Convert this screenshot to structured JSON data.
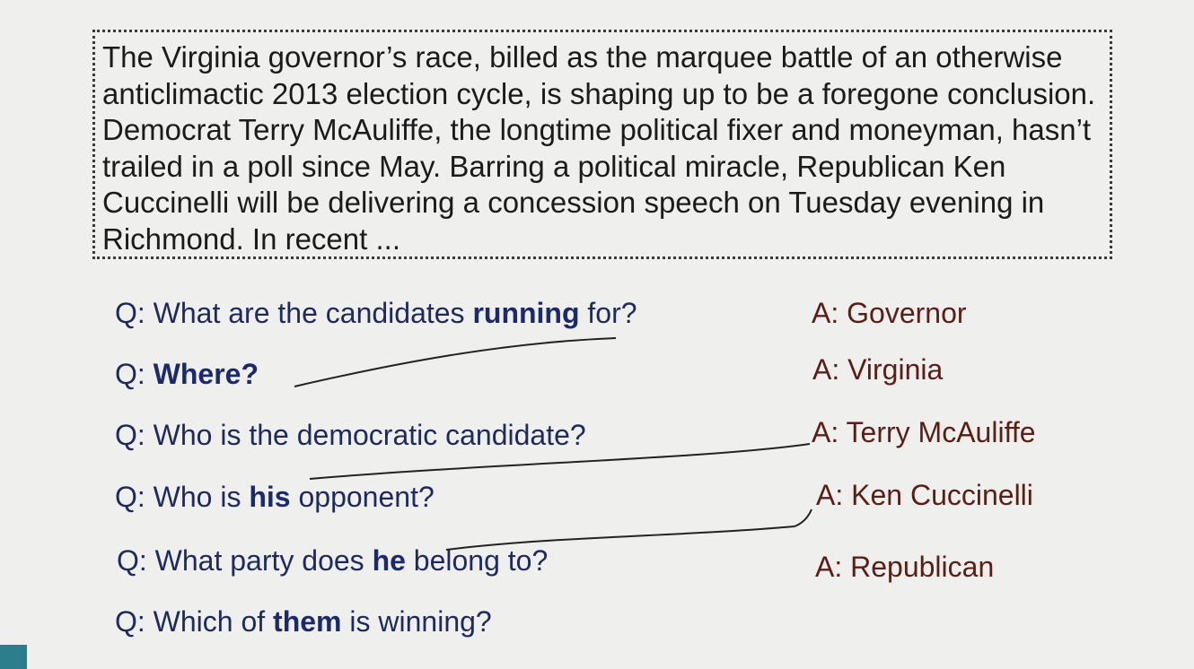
{
  "passage": "The Virginia governor’s race, billed as the marquee battle of an otherwise anticlimactic 2013 election cycle, is shaping up to be a foregone conclusion. Democrat Terry McAuliffe, the longtime political fixer and moneyman, hasn’t trailed in a poll since May. Barring a political miracle, Republican Ken Cuccinelli will be delivering a concession speech on Tuesday evening in Richmond. In recent ...",
  "questions": [
    {
      "pre": "Q: What are the candidates ",
      "bold": "running",
      "post": " for?"
    },
    {
      "pre": "Q: ",
      "bold": "Where?",
      "post": ""
    },
    {
      "pre": "Q: Who is the democratic candidate?",
      "bold": "",
      "post": ""
    },
    {
      "pre": "Q: Who is ",
      "bold": "his",
      "post": " opponent?"
    },
    {
      "pre": "Q: What party does ",
      "bold": "he",
      "post": " belong to?"
    },
    {
      "pre": "Q: Which of ",
      "bold": "them",
      "post": " is winning?"
    }
  ],
  "answers": [
    "A: Governor",
    "A: Virginia",
    "A: Terry McAuliffe",
    "A: Ken Cuccinelli",
    "A: Republican"
  ],
  "colors": {
    "background": "#efefee",
    "question_text": "#1e2a5e",
    "answer_text": "#5a1e16",
    "corner_block": "#2c7e8c"
  }
}
